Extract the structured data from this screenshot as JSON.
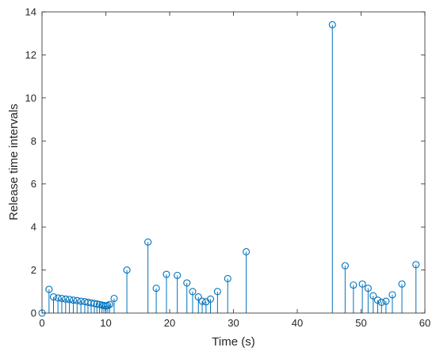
{
  "chart_data": {
    "type": "stem",
    "xlabel": "Time (s)",
    "ylabel": "Release time intervals",
    "xlim": [
      0,
      60
    ],
    "ylim": [
      0,
      14
    ],
    "xticks": [
      0,
      10,
      20,
      30,
      40,
      50,
      60
    ],
    "yticks": [
      0,
      2,
      4,
      6,
      8,
      10,
      12,
      14
    ],
    "grid": false,
    "color": "#0072BD",
    "series": [
      {
        "x": [
          0.0,
          1.1,
          1.8,
          2.5,
          3.1,
          3.7,
          4.3,
          4.9,
          5.5,
          6.1,
          6.7,
          7.2,
          7.7,
          8.2,
          8.6,
          9.0,
          9.4,
          9.7,
          10.0,
          10.3,
          10.6,
          11.3,
          13.3,
          16.6,
          17.9,
          19.5,
          21.2,
          22.7,
          23.6,
          24.5,
          25.1,
          25.7,
          26.4,
          27.5,
          29.1,
          32.0,
          45.5,
          47.5,
          48.8,
          50.2,
          51.1,
          51.9,
          52.6,
          53.2,
          53.9,
          54.9,
          56.4,
          58.6
        ],
        "y": [
          0.0,
          1.1,
          0.75,
          0.7,
          0.68,
          0.65,
          0.63,
          0.6,
          0.58,
          0.55,
          0.53,
          0.5,
          0.47,
          0.45,
          0.42,
          0.4,
          0.37,
          0.35,
          0.33,
          0.35,
          0.4,
          0.68,
          2.0,
          3.3,
          1.15,
          1.8,
          1.75,
          1.4,
          1.0,
          0.75,
          0.55,
          0.52,
          0.65,
          1.0,
          1.6,
          2.85,
          13.4,
          2.2,
          1.3,
          1.35,
          1.15,
          0.8,
          0.6,
          0.5,
          0.55,
          0.85,
          1.35,
          2.25
        ]
      }
    ]
  }
}
